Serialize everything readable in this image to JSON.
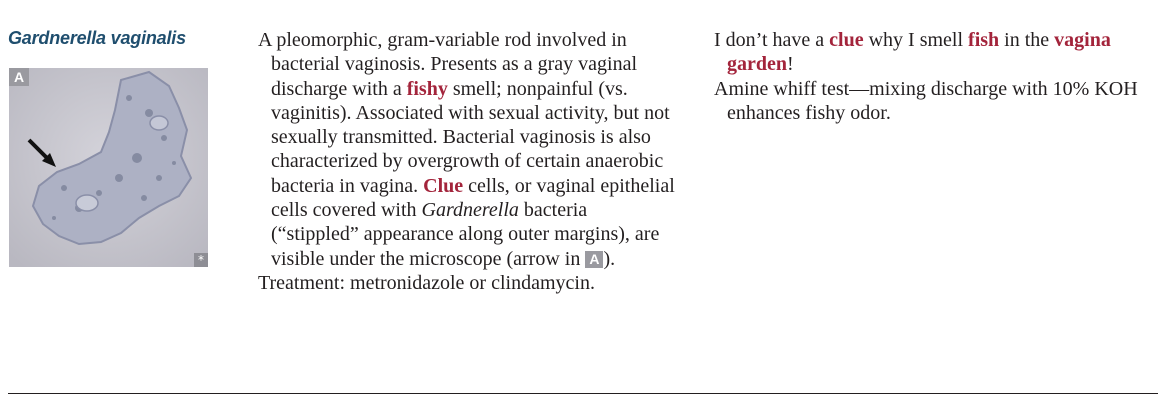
{
  "title": "Gardnerella vaginalis",
  "figure": {
    "label": "A",
    "corner_icon": "asterisk-icon",
    "corner_glyph": "*"
  },
  "description": {
    "p1_a": "A pleomorphic, gram-variable rod involved in bacterial vaginosis. Presents as a gray vaginal discharge with a ",
    "p1_fishy": "fishy",
    "p1_b": " smell; nonpainful (vs. vaginitis). Associated with sexual activity, but not sexually transmitted. Bacterial vaginosis is also characterized by overgrowth of certain anaerobic bacteria in vagina. ",
    "p1_clue": "Clue",
    "p1_c": " cells, or vaginal epithelial cells covered with ",
    "p1_italic": "Gardnerella",
    "p1_d": " bacteria (“stippled” appearance along outer margins), are visible under the microscope (arrow in ",
    "p1_badge": "A",
    "p1_e": ").",
    "p2": "Treatment: metronidazole or clindamycin."
  },
  "mnemonic": {
    "a": "I don’t have a ",
    "clue": "clue",
    "b": " why I smell ",
    "fish": "fish",
    "c": " in the ",
    "vagina_garden": "vagina garden",
    "d": "!",
    "p2": "Amine whiff test—mixing discharge with 10% KOH enhances fishy odor."
  },
  "colors": {
    "title": "#1f4e6e",
    "highlight": "#a3243b",
    "text": "#231f20",
    "badge": "#9a9aa0"
  }
}
